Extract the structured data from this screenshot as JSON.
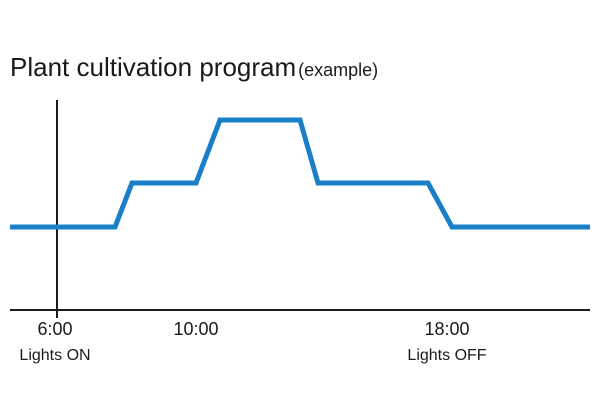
{
  "header": {
    "title": "Plant cultivation program",
    "subtitle": "(example)"
  },
  "axis": {
    "labels": [
      {
        "time": "6:00",
        "note": "Lights ON"
      },
      {
        "time": "10:00"
      },
      {
        "time": "18:00",
        "note": "Lights OFF"
      }
    ]
  }
}
